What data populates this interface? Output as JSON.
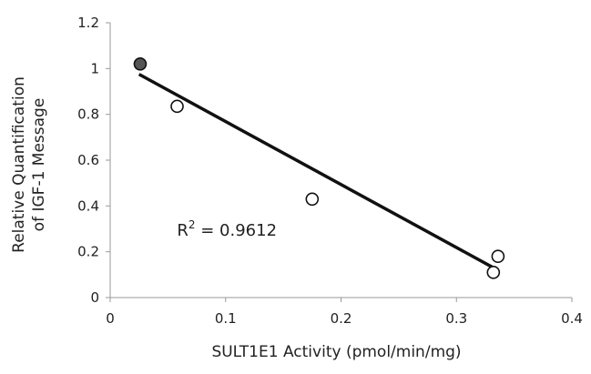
{
  "chart_data": {
    "type": "scatter",
    "title": "",
    "xlabel": "SULT1E1 Activity (pmol/min/mg)",
    "ylabel_lines": [
      "Relative Quantification",
      "of IGF-1 Message"
    ],
    "xlim": [
      0,
      0.4
    ],
    "ylim": [
      0,
      1.2
    ],
    "x_ticks": [
      0,
      0.1,
      0.2,
      0.3,
      0.4
    ],
    "x_tick_labels": [
      "0",
      "0.1",
      "0.2",
      "0.3",
      "0.4"
    ],
    "y_ticks": [
      0,
      0.2,
      0.4,
      0.6,
      0.8,
      1.0,
      1.2
    ],
    "y_tick_labels": [
      "0",
      "0.2",
      "0.4",
      "0.6",
      "0.8",
      "1",
      "1.2"
    ],
    "grid": false,
    "series": [
      {
        "points": [
          {
            "x": 0.026,
            "y": 1.02,
            "filled": true
          },
          {
            "x": 0.058,
            "y": 0.835,
            "filled": false
          },
          {
            "x": 0.175,
            "y": 0.43,
            "filled": false
          },
          {
            "x": 0.332,
            "y": 0.11,
            "filled": false
          },
          {
            "x": 0.336,
            "y": 0.18,
            "filled": false
          }
        ]
      }
    ],
    "trendline": {
      "x1": 0.025,
      "y1": 0.975,
      "x2": 0.334,
      "y2": 0.125
    },
    "annotation": {
      "prefix": "R",
      "superscript": "2",
      "text": " = 0.9612",
      "x": 0.05,
      "y": 0.27
    },
    "colors": {
      "axis": "#999999",
      "line": "#111111",
      "marker_edge": "#111111",
      "marker_filled": "#555555",
      "marker_open": "#ffffff"
    }
  }
}
